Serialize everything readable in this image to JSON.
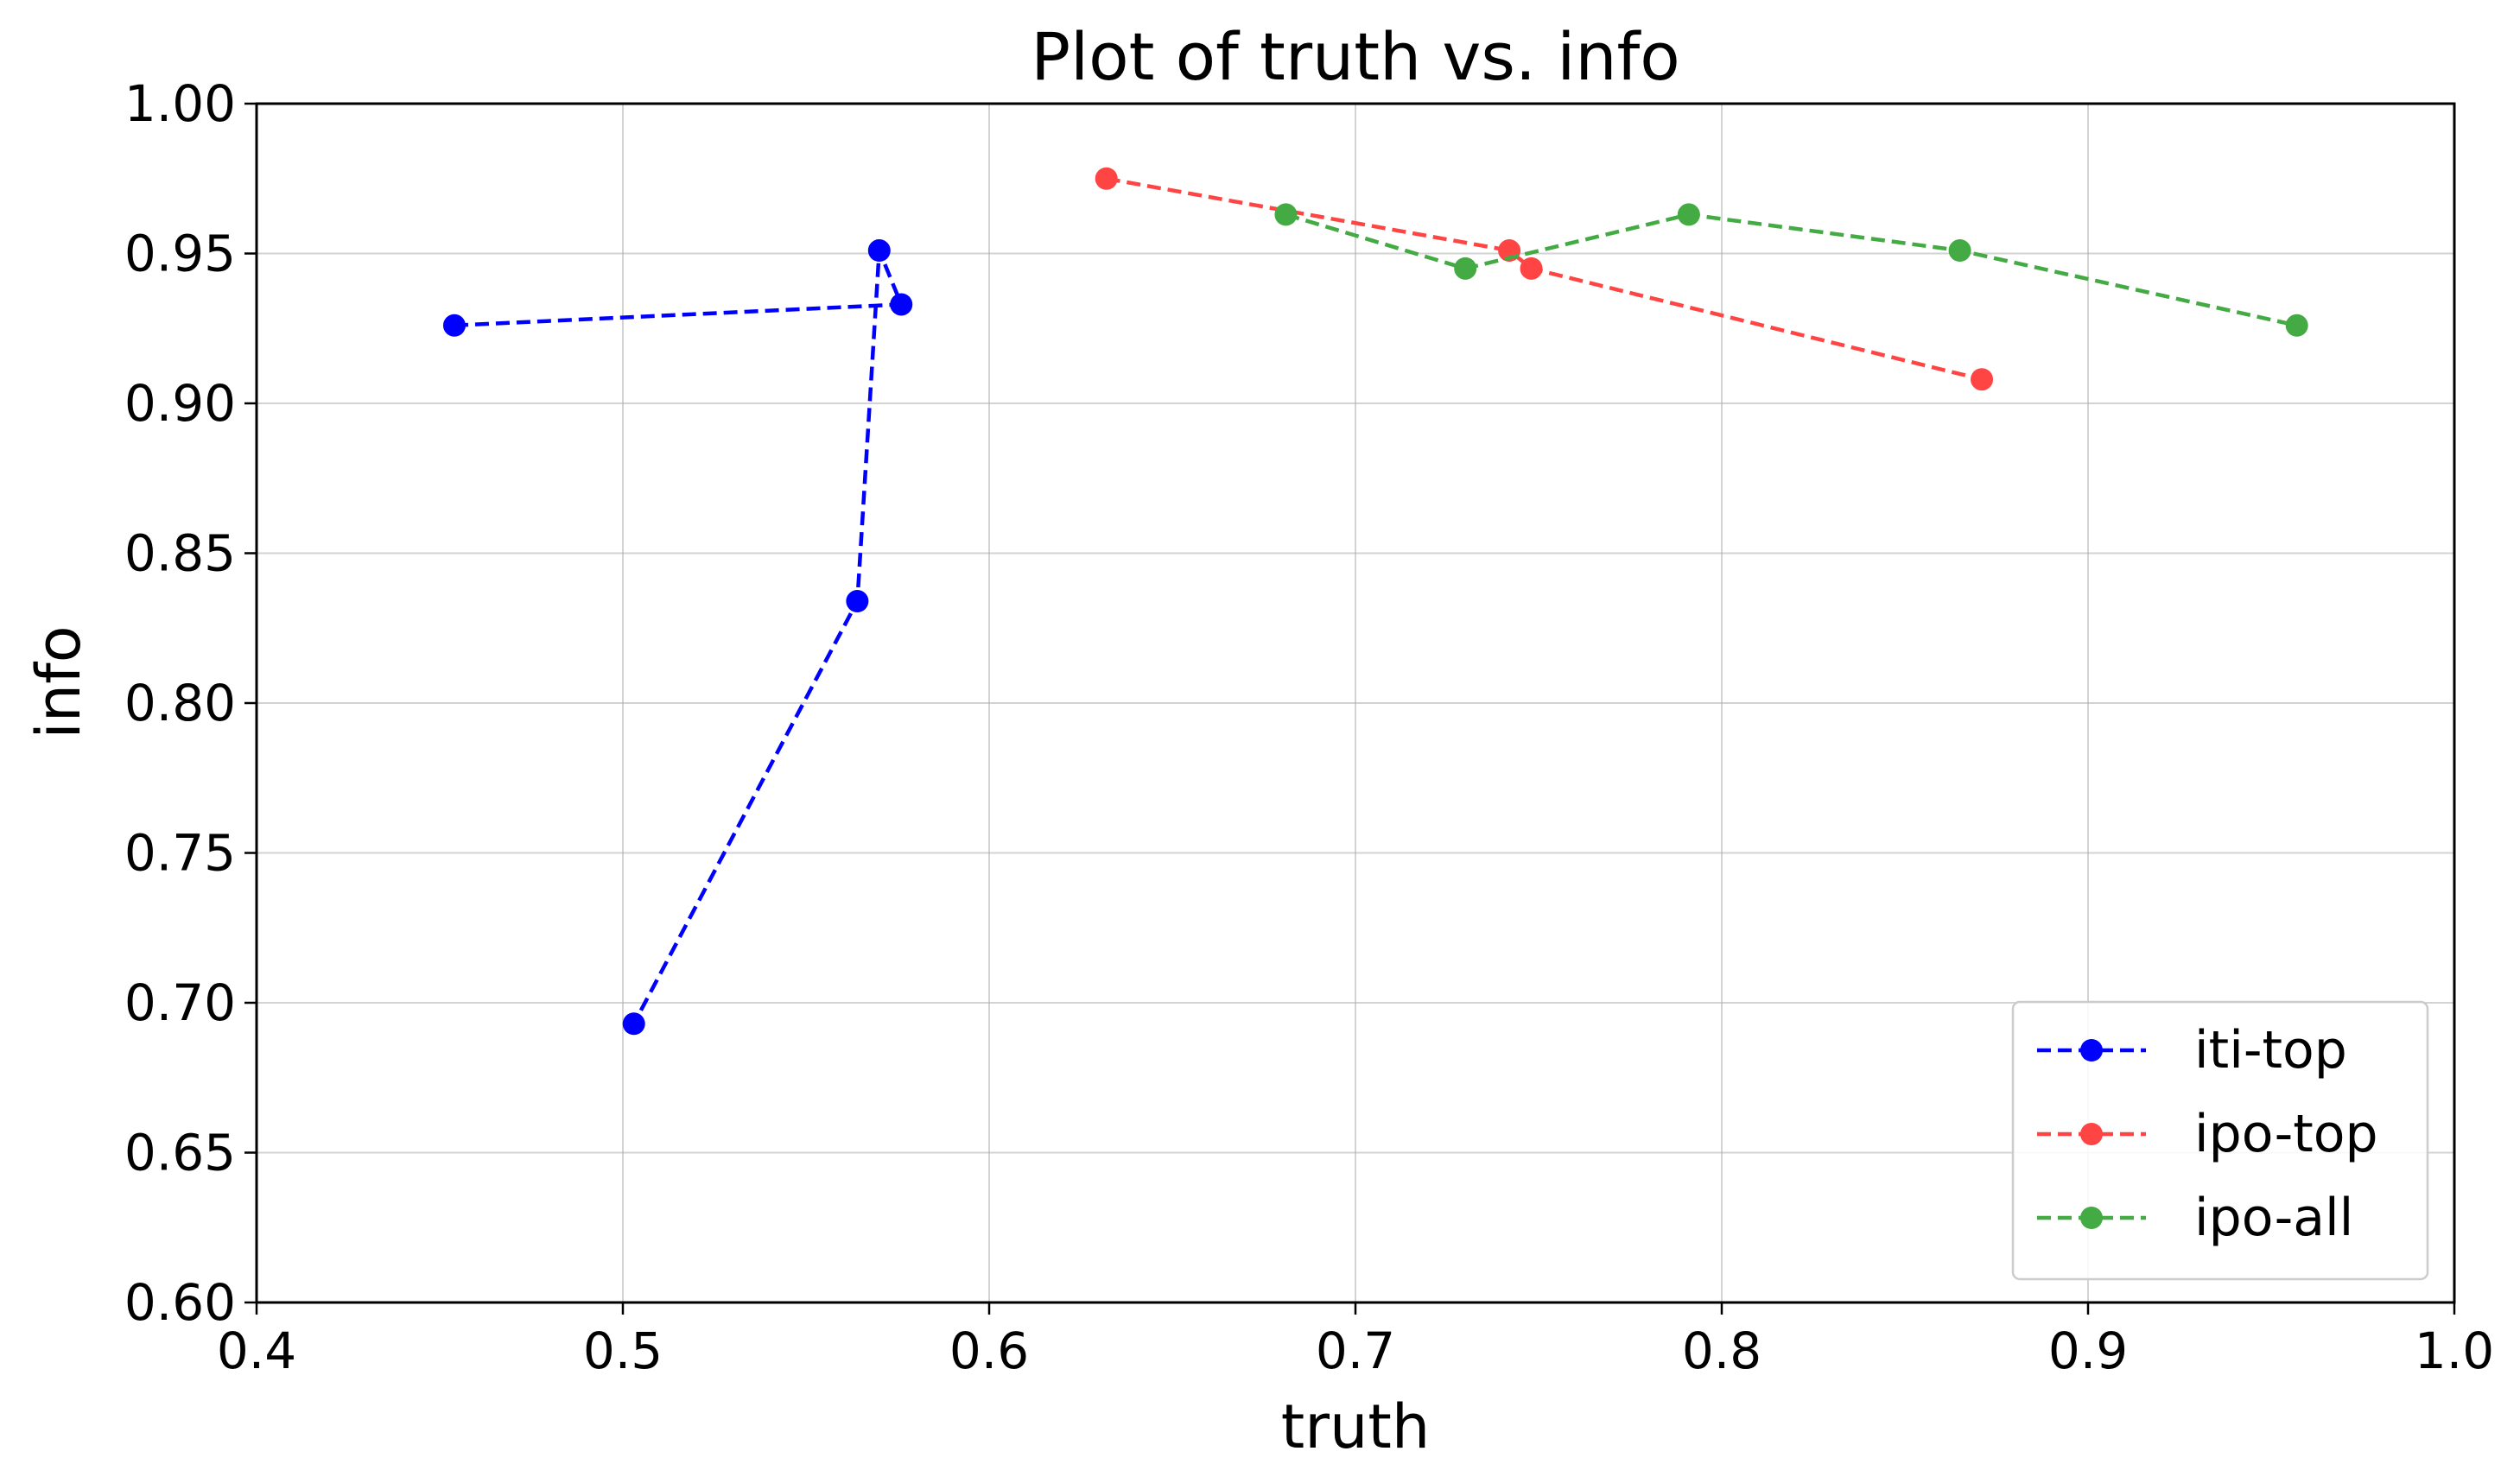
{
  "chart_data": {
    "type": "line",
    "title": "Plot of truth vs. info",
    "xlabel": "truth",
    "ylabel": "info",
    "xlim": [
      0.4,
      1.0
    ],
    "ylim": [
      0.6,
      1.0
    ],
    "xticks": [
      0.4,
      0.5,
      0.6,
      0.7,
      0.8,
      0.9,
      1.0
    ],
    "xtick_labels": [
      "0.4",
      "0.5",
      "0.6",
      "0.7",
      "0.8",
      "0.9",
      "1.0"
    ],
    "yticks": [
      0.6,
      0.65,
      0.7,
      0.75,
      0.8,
      0.85,
      0.9,
      0.95,
      1.0
    ],
    "ytick_labels": [
      "0.60",
      "0.65",
      "0.70",
      "0.75",
      "0.80",
      "0.85",
      "0.90",
      "0.95",
      "1.00"
    ],
    "grid": true,
    "legend_position": "lower-right",
    "series": [
      {
        "name": "iti-top",
        "color": "#0000ff",
        "linestyle": "dashed",
        "marker": "circle",
        "points": [
          [
            0.454,
            0.926
          ],
          [
            0.576,
            0.933
          ],
          [
            0.57,
            0.951
          ],
          [
            0.564,
            0.834
          ],
          [
            0.503,
            0.693
          ]
        ]
      },
      {
        "name": "ipo-top",
        "color": "#ff4444",
        "linestyle": "dashed",
        "marker": "circle",
        "points": [
          [
            0.632,
            0.975
          ],
          [
            0.742,
            0.951
          ],
          [
            0.748,
            0.945
          ],
          [
            0.871,
            0.908
          ]
        ]
      },
      {
        "name": "ipo-all",
        "color": "#44aa44",
        "linestyle": "dashed",
        "marker": "circle",
        "points": [
          [
            0.681,
            0.963
          ],
          [
            0.73,
            0.945
          ],
          [
            0.791,
            0.963
          ],
          [
            0.865,
            0.951
          ],
          [
            0.957,
            0.926
          ]
        ]
      }
    ]
  }
}
